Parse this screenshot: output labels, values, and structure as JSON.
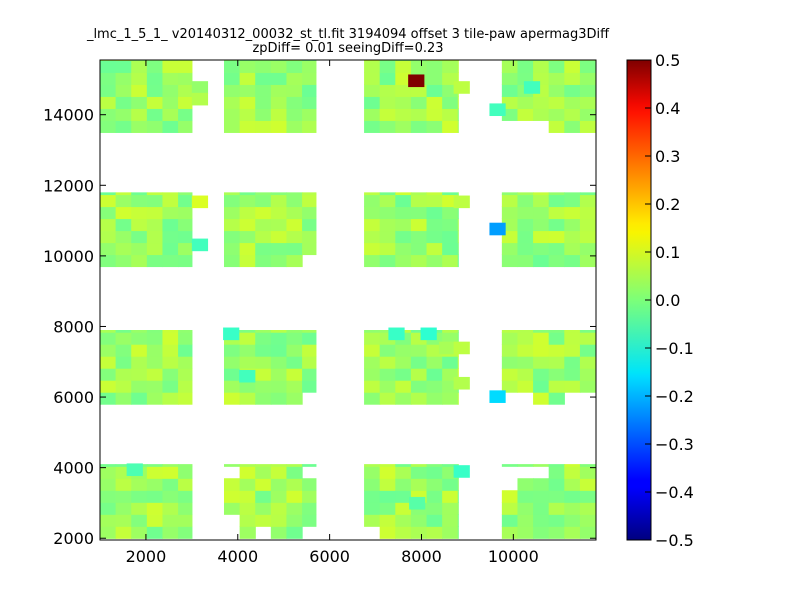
{
  "chart_data": {
    "type": "heatmap",
    "title_line1": "_lmc_1_5_1_ v20140312_00032_st_tl.fit 3194094 offset 3 tile-paw apermag3Diff",
    "title_line2": "zpDiff= 0.01 seeingDiff=0.23",
    "xlim": [
      1000,
      11800
    ],
    "ylim": [
      1950,
      15550
    ],
    "x_ticks": [
      2000,
      4000,
      6000,
      8000,
      10000
    ],
    "y_ticks": [
      2000,
      4000,
      6000,
      8000,
      10000,
      12000,
      14000
    ],
    "cell_size": 340,
    "colorbar": {
      "colormap": "jet",
      "range": [
        -0.5,
        0.5
      ],
      "ticks": [
        "0.5",
        "0.4",
        "0.3",
        "0.2",
        "0.1",
        "0.0",
        "−0.1",
        "−0.2",
        "−0.3",
        "−0.4",
        "−0.5"
      ]
    },
    "columns": [
      {
        "x": [
          1000,
          3000
        ]
      },
      {
        "x": [
          3700,
          5700
        ]
      },
      {
        "x": [
          6750,
          8800
        ]
      },
      {
        "x": [
          9750,
          11800
        ]
      }
    ],
    "rows": [
      {
        "y": [
          2000,
          4100
        ]
      },
      {
        "y": [
          5800,
          7900
        ]
      },
      {
        "y": [
          9700,
          11800
        ]
      },
      {
        "y": [
          13500,
          15550
        ]
      }
    ],
    "outliers": [
      {
        "x": 7880,
        "y": 14970,
        "value": 0.5
      },
      {
        "x": 9650,
        "y": 10770,
        "value": -0.22
      },
      {
        "x": 9650,
        "y": 6020,
        "value": -0.16
      },
      {
        "x": 9650,
        "y": 14150,
        "value": -0.06
      },
      {
        "x": 3170,
        "y": 10320,
        "value": -0.06
      },
      {
        "x": 3170,
        "y": 11540,
        "value": 0.09
      },
      {
        "x": 3170,
        "y": 14780,
        "value": 0.02
      },
      {
        "x": 3170,
        "y": 14450,
        "value": 0.05
      },
      {
        "x": 3850,
        "y": 7800,
        "value": -0.07
      },
      {
        "x": 4200,
        "y": 6600,
        "value": -0.06
      },
      {
        "x": 7450,
        "y": 7800,
        "value": -0.07
      },
      {
        "x": 8150,
        "y": 7800,
        "value": -0.08
      },
      {
        "x": 8550,
        "y": 7400,
        "value": 0.04
      },
      {
        "x": 8870,
        "y": 7400,
        "value": 0.06
      },
      {
        "x": 8870,
        "y": 6400,
        "value": 0.05
      },
      {
        "x": 8870,
        "y": 3900,
        "value": -0.07
      },
      {
        "x": 8870,
        "y": 14780,
        "value": 0.06
      },
      {
        "x": 8870,
        "y": 11540,
        "value": 0.06
      },
      {
        "x": 1750,
        "y": 3950,
        "value": -0.05
      },
      {
        "x": 7900,
        "y": 3000,
        "value": -0.04
      },
      {
        "x": 10400,
        "y": 14780,
        "value": -0.06
      }
    ],
    "missing_cells": [
      {
        "x": 3700,
        "y": 2000
      },
      {
        "x": 3700,
        "y": 2340
      },
      {
        "x": 3700,
        "y": 3700
      },
      {
        "x": 4380,
        "y": 2000
      },
      {
        "x": 5400,
        "y": 2000
      },
      {
        "x": 5740,
        "y": 2000
      },
      {
        "x": 5400,
        "y": 3700
      },
      {
        "x": 6750,
        "y": 2000
      },
      {
        "x": 7100,
        "y": 2000
      },
      {
        "x": 7440,
        "y": 2000
      },
      {
        "x": 8120,
        "y": 2000
      },
      {
        "x": 8460,
        "y": 2000
      },
      {
        "x": 8460,
        "y": 2340
      },
      {
        "x": 8460,
        "y": 2680
      },
      {
        "x": 8460,
        "y": 3020
      },
      {
        "x": 9750,
        "y": 3700
      },
      {
        "x": 9750,
        "y": 3360
      },
      {
        "x": 10090,
        "y": 3700
      },
      {
        "x": 10430,
        "y": 3700
      },
      {
        "x": 6750,
        "y": 7220
      },
      {
        "x": 6750,
        "y": 7560
      },
      {
        "x": 7090,
        "y": 7560
      },
      {
        "x": 8120,
        "y": 7220
      },
      {
        "x": 8460,
        "y": 7220
      },
      {
        "x": 8460,
        "y": 6880
      },
      {
        "x": 8460,
        "y": 6540
      },
      {
        "x": 9750,
        "y": 5800
      },
      {
        "x": 10090,
        "y": 5800
      },
      {
        "x": 10430,
        "y": 5460
      },
      {
        "x": 10770,
        "y": 5460
      },
      {
        "x": 11110,
        "y": 5800
      },
      {
        "x": 11450,
        "y": 5800
      },
      {
        "x": 5400,
        "y": 5800
      },
      {
        "x": 5740,
        "y": 5800
      },
      {
        "x": 5740,
        "y": 10040
      },
      {
        "x": 5400,
        "y": 9700
      },
      {
        "x": 5740,
        "y": 9700
      },
      {
        "x": 8120,
        "y": 9700
      },
      {
        "x": 8460,
        "y": 9700
      },
      {
        "x": 8460,
        "y": 10040
      },
      {
        "x": 9750,
        "y": 11460
      },
      {
        "x": 2660,
        "y": 13500
      },
      {
        "x": 2660,
        "y": 15200
      },
      {
        "x": 8460,
        "y": 13500
      },
      {
        "x": 8460,
        "y": 13840
      },
      {
        "x": 9750,
        "y": 13500
      },
      {
        "x": 10090,
        "y": 13500
      },
      {
        "x": 10430,
        "y": 13500
      }
    ]
  }
}
